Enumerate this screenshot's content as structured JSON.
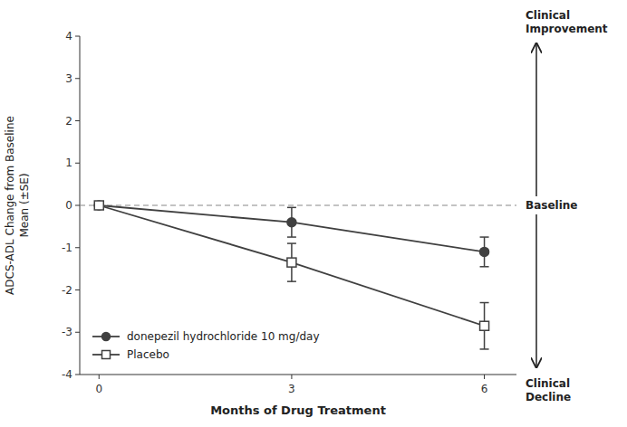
{
  "chart_data": {
    "type": "line",
    "x": [
      0,
      3,
      6
    ],
    "xlabel": "Months of Drug Treatment",
    "ylabel": "ADCS-ADL Change from Baseline\nMean (±SE)",
    "xlim": [
      -0.3,
      6.5
    ],
    "xticks": [
      0,
      3,
      6
    ],
    "ylim": [
      -4,
      4
    ],
    "yticks": [
      -4,
      -3,
      -2,
      -1,
      0,
      1,
      2,
      3,
      4
    ],
    "grid": false,
    "legend": "lower left",
    "series": [
      {
        "name": "donepezil hydrochloride 10 mg/day",
        "color": "#404040",
        "marker": "circle",
        "line_style": "solid",
        "values": [
          0,
          -0.4,
          -1.1
        ],
        "errors": [
          0,
          0.35,
          0.35
        ]
      },
      {
        "name": "Placebo",
        "color": "#404040",
        "marker": "open-square",
        "line_style": "solid",
        "values": [
          0,
          -1.35,
          -2.85
        ],
        "errors": [
          0,
          0.45,
          0.55
        ]
      }
    ],
    "baseline": {
      "value": 0,
      "label": "Baseline",
      "line_style": "dashed"
    },
    "annotations": [
      {
        "text": "Clinical\nImprovement",
        "direction": "up"
      },
      {
        "text": "Clinical\nDecline",
        "direction": "down"
      }
    ]
  }
}
